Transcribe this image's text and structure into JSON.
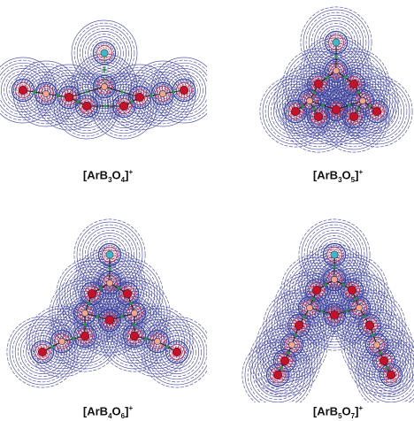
{
  "figure": {
    "panels": [
      {
        "id": "a",
        "formula": {
          "pre": "[ArB",
          "n1": "3",
          "mid": "O",
          "n2": "4",
          "post": "]",
          "charge": "+"
        }
      },
      {
        "id": "b",
        "formula": {
          "pre": "[ArB",
          "n1": "3",
          "mid": "O",
          "n2": "5",
          "post": "]",
          "charge": "+"
        }
      },
      {
        "id": "c",
        "formula": {
          "pre": "[ArB",
          "n1": "4",
          "mid": "O",
          "n2": "6",
          "post": "]",
          "charge": "+"
        }
      },
      {
        "id": "d",
        "formula": {
          "pre": "[ArB",
          "n1": "5",
          "mid": "O",
          "n2": "7",
          "post": "]",
          "charge": "+"
        }
      }
    ],
    "colors": {
      "contour": "#3b3f9a",
      "inner_contour": "#d0314c",
      "oxygen": "#c4122a",
      "boron": "#f0a890",
      "argon": "#3fb8c8",
      "bond_path": "#222222",
      "critical_point": "#2a9a3a"
    }
  }
}
